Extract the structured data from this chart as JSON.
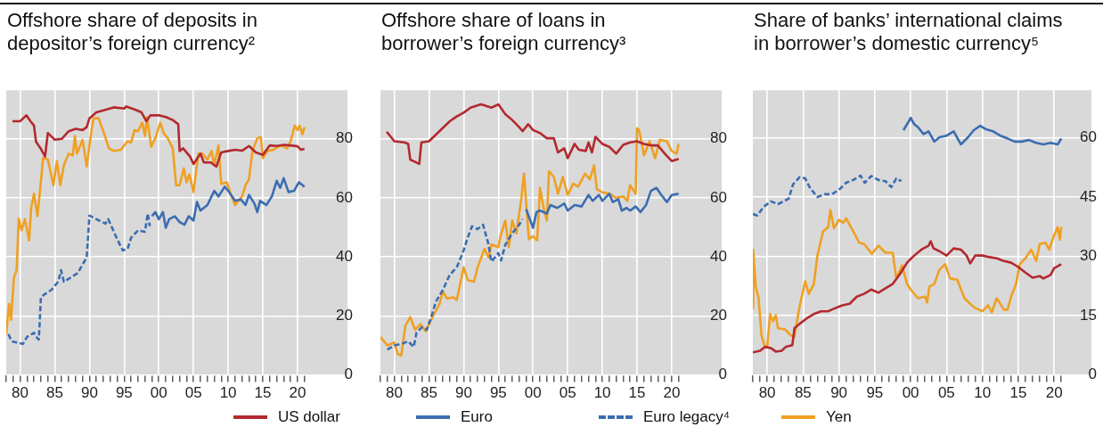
{
  "chart_data": [
    {
      "type": "line",
      "title": "Offshore share of deposits in depositor’s foreign currency²",
      "legend": "bottom",
      "grid": true,
      "xlim": [
        1978,
        2027.2
      ],
      "ylim": [
        0,
        96.5
      ],
      "yticks": [
        0,
        20,
        40,
        60,
        80
      ],
      "xticks": [
        {
          "value": 1978,
          "label": null
        },
        {
          "value": 1979,
          "label": null
        },
        {
          "value": 1980,
          "label": "80"
        },
        {
          "value": 1981,
          "label": null
        },
        {
          "value": 1982,
          "label": null
        },
        {
          "value": 1983,
          "label": null
        },
        {
          "value": 1984,
          "label": null
        },
        {
          "value": 1985,
          "label": "85"
        },
        {
          "value": 1986,
          "label": null
        },
        {
          "value": 1987,
          "label": null
        },
        {
          "value": 1988,
          "label": null
        },
        {
          "value": 1989,
          "label": null
        },
        {
          "value": 1990,
          "label": "90"
        },
        {
          "value": 1991,
          "label": null
        },
        {
          "value": 1992,
          "label": null
        },
        {
          "value": 1993,
          "label": null
        },
        {
          "value": 1994,
          "label": null
        },
        {
          "value": 1995,
          "label": "95"
        },
        {
          "value": 1996,
          "label": null
        },
        {
          "value": 1997,
          "label": null
        },
        {
          "value": 1998,
          "label": null
        },
        {
          "value": 1999,
          "label": null
        },
        {
          "value": 2000,
          "label": "00"
        },
        {
          "value": 2001,
          "label": null
        },
        {
          "value": 2002,
          "label": null
        },
        {
          "value": 2003,
          "label": null
        },
        {
          "value": 2004,
          "label": null
        },
        {
          "value": 2005,
          "label": "05"
        },
        {
          "value": 2006,
          "label": null
        },
        {
          "value": 2007,
          "label": null
        },
        {
          "value": 2008,
          "label": null
        },
        {
          "value": 2009,
          "label": null
        },
        {
          "value": 2010,
          "label": "10"
        },
        {
          "value": 2011,
          "label": null
        },
        {
          "value": 2012,
          "label": null
        },
        {
          "value": 2013,
          "label": null
        },
        {
          "value": 2014,
          "label": null
        },
        {
          "value": 2015,
          "label": "15"
        },
        {
          "value": 2016,
          "label": null
        },
        {
          "value": 2017,
          "label": null
        },
        {
          "value": 2018,
          "label": null
        },
        {
          "value": 2019,
          "label": null
        },
        {
          "value": 2020,
          "label": "20"
        },
        {
          "value": 2021,
          "label": null
        }
      ],
      "series": [
        {
          "name": "US dollar",
          "color": "#b3292e",
          "line_style": "solid",
          "x": [
            1978.9,
            1980,
            1980.9,
            1981.5,
            1982,
            1982.3,
            1983,
            1983.6,
            1984,
            1985,
            1986,
            1987,
            1988,
            1989,
            1989.6,
            1990,
            1991,
            1992.5,
            1993.5,
            1995,
            1995.3,
            1996.5,
            1997.5,
            1998.2,
            1998.8,
            2000,
            2001,
            2002,
            2002.8,
            2003,
            2003.5,
            2004.5,
            2005,
            2006,
            2006.5,
            2007.5,
            2008.3,
            2009,
            2010,
            2011,
            2012,
            2013,
            2014,
            2015,
            2016,
            2017,
            2018,
            2019,
            2020,
            2020.5,
            2021
          ],
          "values": [
            86,
            86,
            88,
            86,
            84.5,
            79,
            76.6,
            74,
            82,
            79.7,
            80,
            82.6,
            83.4,
            83,
            84,
            87,
            89,
            90,
            90.7,
            90.3,
            91,
            90,
            89,
            86,
            88,
            88,
            87.4,
            86.4,
            85,
            75.9,
            76.8,
            74,
            71.5,
            75,
            72,
            72,
            70.6,
            75.4,
            75.9,
            76.3,
            76,
            77.6,
            75.4,
            74.6,
            77.8,
            77.6,
            78,
            77.8,
            77.5,
            76.3,
            76.6
          ]
        },
        {
          "name": "Euro",
          "color": "#3b6db0",
          "line_style": "solid",
          "x": [
            1999,
            1999.5,
            2000,
            2000.6,
            2001,
            2001.5,
            2002.3,
            2003,
            2003.7,
            2004.3,
            2005,
            2005.5,
            2006,
            2007,
            2008,
            2008.6,
            2009.5,
            2010,
            2011,
            2011.8,
            2012.5,
            2013,
            2013.8,
            2014.2,
            2014.6,
            2015.5,
            2016.3,
            2017,
            2017.5,
            2018,
            2018.7,
            2019.5,
            2020.2,
            2021
          ],
          "values": [
            53.8,
            55.2,
            52.8,
            55.2,
            49.9,
            52.8,
            53.8,
            51.8,
            50.9,
            53.8,
            52.3,
            58.6,
            55.7,
            57.6,
            62.4,
            60.5,
            63.8,
            62.4,
            59,
            59.5,
            57.6,
            61,
            58,
            55.2,
            59,
            57.6,
            60.5,
            65.8,
            63.4,
            66.7,
            62,
            62.4,
            65.3,
            63.8
          ]
        },
        {
          "name": "Euro legacy⁴",
          "color": "#3b6db0",
          "line_style": "dashed",
          "x": [
            1978.3,
            1978.8,
            1980.4,
            1981,
            1982,
            1982.5,
            1982.7,
            1983,
            1983.5,
            1984.5,
            1985,
            1985.5,
            1985.9,
            1986.3,
            1987.3,
            1988.3,
            1989,
            1989.6,
            1990,
            1991,
            1992.3,
            1992.7,
            1994,
            1994.8,
            1995.5,
            1996,
            1997,
            1998,
            1998.4,
            1998.7
          ],
          "values": [
            13.8,
            11.4,
            10.5,
            12.9,
            14.3,
            12.4,
            12,
            26.3,
            27.3,
            28.8,
            30.2,
            31.6,
            35.5,
            31.6,
            33,
            34.5,
            37.4,
            39.8,
            54,
            52.8,
            51.3,
            52.8,
            46,
            42.2,
            42.7,
            46.5,
            49,
            48.5,
            54.7,
            50.4
          ]
        },
        {
          "name": "Yen",
          "color": "#efa022",
          "line_style": "solid",
          "x": [
            1978,
            1978.4,
            1978.7,
            1979.1,
            1979.5,
            1979.8,
            1980.2,
            1980.7,
            1981.3,
            1981.6,
            1982,
            1982.5,
            1983.1,
            1983.3,
            1984,
            1984.8,
            1985.3,
            1985.8,
            1986.3,
            1987,
            1987.6,
            1987.9,
            1988.2,
            1989,
            1989.6,
            1990.3,
            1990.6,
            1991.3,
            1992,
            1992.8,
            1993.5,
            1994.5,
            1995.5,
            1996,
            1996.5,
            1997,
            1997.6,
            1998,
            1998.3,
            1998.9,
            1999.5,
            2000.2,
            2000.7,
            2001.3,
            2002,
            2002.5,
            2003,
            2003.6,
            2004,
            2004.4,
            2005,
            2005.7,
            2006.3,
            2007,
            2007.6,
            2008,
            2008.6,
            2009,
            2009.8,
            2010.5,
            2011,
            2012,
            2012.5,
            2013,
            2013.5,
            2014.2,
            2014.7,
            2015,
            2015.7,
            2016.5,
            2017.5,
            2018.5,
            2019,
            2019.6,
            2020,
            2020.3,
            2020.7,
            2021
          ],
          "values": [
            13.8,
            24,
            18.7,
            33,
            35.5,
            53,
            49,
            52.8,
            45.6,
            56.6,
            61.4,
            53.8,
            68,
            73.5,
            73,
            64.3,
            72.5,
            64.3,
            71,
            75,
            74.4,
            81,
            75,
            79.7,
            70.6,
            83,
            87,
            87,
            82.6,
            76.8,
            75.9,
            76.3,
            79.2,
            78.8,
            83,
            82.6,
            85.5,
            81,
            87.4,
            77.3,
            80.2,
            85.5,
            82,
            80.2,
            76.8,
            64.3,
            64.3,
            70,
            65.3,
            68,
            62,
            75,
            75,
            73,
            75.9,
            71,
            77.8,
            64.8,
            65.3,
            60.5,
            57.6,
            60.5,
            64.3,
            66.3,
            75.9,
            80.2,
            80.7,
            73.5,
            75.9,
            76.3,
            77.8,
            76.8,
            79.2,
            84.5,
            83,
            84.5,
            81.6,
            84
          ]
        }
      ]
    },
    {
      "type": "line",
      "title": "Offshore share of loans in borrower’s foreign currency³",
      "grid": true,
      "xlim": [
        1978,
        2027.2
      ],
      "ylim": [
        0,
        96.5
      ],
      "yticks": [
        0,
        20,
        40,
        60,
        80
      ],
      "xticks": [
        {
          "value": 1978,
          "label": null
        },
        {
          "value": 1979,
          "label": null
        },
        {
          "value": 1980,
          "label": "80"
        },
        {
          "value": 1981,
          "label": null
        },
        {
          "value": 1982,
          "label": null
        },
        {
          "value": 1983,
          "label": null
        },
        {
          "value": 1984,
          "label": null
        },
        {
          "value": 1985,
          "label": "85"
        },
        {
          "value": 1986,
          "label": null
        },
        {
          "value": 1987,
          "label": null
        },
        {
          "value": 1988,
          "label": null
        },
        {
          "value": 1989,
          "label": null
        },
        {
          "value": 1990,
          "label": "90"
        },
        {
          "value": 1991,
          "label": null
        },
        {
          "value": 1992,
          "label": null
        },
        {
          "value": 1993,
          "label": null
        },
        {
          "value": 1994,
          "label": null
        },
        {
          "value": 1995,
          "label": "95"
        },
        {
          "value": 1996,
          "label": null
        },
        {
          "value": 1997,
          "label": null
        },
        {
          "value": 1998,
          "label": null
        },
        {
          "value": 1999,
          "label": null
        },
        {
          "value": 2000,
          "label": "00"
        },
        {
          "value": 2001,
          "label": null
        },
        {
          "value": 2002,
          "label": null
        },
        {
          "value": 2003,
          "label": null
        },
        {
          "value": 2004,
          "label": null
        },
        {
          "value": 2005,
          "label": "05"
        },
        {
          "value": 2006,
          "label": null
        },
        {
          "value": 2007,
          "label": null
        },
        {
          "value": 2008,
          "label": null
        },
        {
          "value": 2009,
          "label": null
        },
        {
          "value": 2010,
          "label": "10"
        },
        {
          "value": 2011,
          "label": null
        },
        {
          "value": 2012,
          "label": null
        },
        {
          "value": 2013,
          "label": null
        },
        {
          "value": 2014,
          "label": null
        },
        {
          "value": 2015,
          "label": "15"
        },
        {
          "value": 2016,
          "label": null
        },
        {
          "value": 2017,
          "label": null
        },
        {
          "value": 2018,
          "label": null
        },
        {
          "value": 2019,
          "label": null
        },
        {
          "value": 2020,
          "label": "20"
        },
        {
          "value": 2021,
          "label": null
        }
      ],
      "series": [
        {
          "color": "#b3292e",
          "line_style": "solid",
          "x": [
            1978.9,
            1979.5,
            1980,
            1981.5,
            1982,
            1982.3,
            1983,
            1983.6,
            1983.9,
            1985,
            1986.5,
            1988,
            1989,
            1990,
            1991,
            1992.5,
            1994,
            1995,
            1996,
            1997,
            1998,
            1998.5,
            1999.3,
            2000,
            2001,
            2002,
            2003,
            2003.6,
            2004.5,
            2005,
            2006,
            2006.6,
            2007.6,
            2008,
            2008.5,
            2009,
            2010,
            2011,
            2012,
            2013,
            2014,
            2015,
            2016,
            2017,
            2018,
            2019,
            2020,
            2021
          ],
          "values": [
            82.4,
            80.7,
            79.2,
            78.8,
            78.3,
            73,
            72.2,
            71.5,
            78.8,
            79.2,
            82.6,
            86,
            87.6,
            88.9,
            90.6,
            91.7,
            90.6,
            91.7,
            88.4,
            86.4,
            84,
            82.6,
            85,
            83,
            82,
            80.2,
            80.2,
            75.4,
            76.8,
            73.5,
            78.3,
            76.3,
            75.9,
            78.8,
            75.4,
            80.7,
            78.3,
            77.3,
            75,
            78,
            78.8,
            79.2,
            78.3,
            77.8,
            77.8,
            75,
            72.5,
            73.2
          ]
        },
        {
          "color": "#3b6db0",
          "line_style": "solid",
          "x": [
            1999,
            2000,
            2000.5,
            2001,
            2002,
            2002.5,
            2003.5,
            2004.5,
            2005,
            2006,
            2007,
            2008,
            2008.6,
            2009.5,
            2010,
            2011,
            2011.5,
            2012.3,
            2012.8,
            2013.5,
            2014,
            2014.8,
            2015.5,
            2016.3,
            2017,
            2017.8,
            2018.5,
            2019.3,
            2020,
            2021
          ],
          "values": [
            56.2,
            49.9,
            55.2,
            55.7,
            54.7,
            57.6,
            56.6,
            58.1,
            55.7,
            57.6,
            57.1,
            61,
            59,
            61,
            59,
            61.4,
            58.6,
            59.5,
            55.7,
            56.6,
            55.7,
            57.1,
            55.2,
            57.6,
            62.4,
            63.4,
            61,
            58.6,
            61,
            61.4
          ]
        },
        {
          "color": "#3b6db0",
          "line_style": "dashed",
          "x": [
            1979,
            1980,
            1981,
            1982,
            1982.8,
            1983.2,
            1984,
            1984.7,
            1985.5,
            1986,
            1987,
            1988,
            1989,
            1990,
            1990.5,
            1991.2,
            1992,
            1992.8,
            1993.5,
            1994,
            1995,
            1995.4,
            1996,
            1997,
            1998,
            1998.5
          ],
          "values": [
            8.6,
            10,
            10.5,
            11.4,
            9.5,
            14.3,
            16.2,
            15.3,
            21,
            24.9,
            28.8,
            34,
            36.4,
            42.2,
            46,
            50.4,
            49.4,
            50.9,
            45,
            38.4,
            41.3,
            38.8,
            44.1,
            48,
            50.9,
            52.8
          ]
        },
        {
          "color": "#efa022",
          "line_style": "solid",
          "x": [
            1978,
            1979,
            1980,
            1980.5,
            1981,
            1981.6,
            1982.3,
            1983,
            1983.8,
            1984.5,
            1985.6,
            1986.5,
            1987,
            1987.6,
            1988.5,
            1989,
            1990,
            1990.6,
            1991.5,
            1992,
            1993,
            1993.6,
            1994,
            1995,
            1995.3,
            1996,
            1996.5,
            1997,
            1997.6,
            1998.3,
            1998.7,
            1999.4,
            2000,
            2000.6,
            2001,
            2001.6,
            2002,
            2002.3,
            2003,
            2003.6,
            2004.3,
            2005,
            2005.8,
            2006.5,
            2007.5,
            2008.2,
            2008.8,
            2009.2,
            2010,
            2011,
            2012,
            2013,
            2013.6,
            2014,
            2014.8,
            2015,
            2015.3,
            2016,
            2016.8,
            2017.6,
            2018.3,
            2019.3,
            2020,
            2020.7,
            2021
          ],
          "values": [
            12.9,
            10,
            11,
            7.1,
            6.6,
            16.7,
            19.6,
            15.3,
            17.2,
            14.8,
            20,
            23.9,
            28.3,
            25.9,
            26.3,
            25.4,
            36.4,
            32.1,
            31.6,
            36.4,
            42.7,
            39.8,
            44.2,
            43.3,
            47,
            52.3,
            43.3,
            52.3,
            48,
            59.5,
            68.2,
            46,
            47,
            45.6,
            63.4,
            55.7,
            52.3,
            69,
            67.1,
            61.4,
            67.1,
            61,
            64.8,
            63.8,
            68.2,
            66.3,
            71,
            62.9,
            61.9,
            61.4,
            60,
            60.5,
            59,
            64.3,
            61.4,
            83.6,
            83,
            74.4,
            79.2,
            73.5,
            79.7,
            79.2,
            75.9,
            75,
            78.3
          ]
        }
      ]
    },
    {
      "type": "line",
      "title": "Share of banks’ international claims in borrower’s domestic currency⁵",
      "grid": true,
      "xlim": [
        1978,
        2025.2
      ],
      "ylim": [
        0,
        72
      ],
      "yticks": [
        0,
        15,
        30,
        45,
        60
      ],
      "xticks": [
        {
          "value": 1978,
          "label": null
        },
        {
          "value": 1979,
          "label": null
        },
        {
          "value": 1980,
          "label": "80"
        },
        {
          "value": 1981,
          "label": null
        },
        {
          "value": 1982,
          "label": null
        },
        {
          "value": 1983,
          "label": null
        },
        {
          "value": 1984,
          "label": null
        },
        {
          "value": 1985,
          "label": "85"
        },
        {
          "value": 1986,
          "label": null
        },
        {
          "value": 1987,
          "label": null
        },
        {
          "value": 1988,
          "label": null
        },
        {
          "value": 1989,
          "label": null
        },
        {
          "value": 1990,
          "label": "90"
        },
        {
          "value": 1991,
          "label": null
        },
        {
          "value": 1992,
          "label": null
        },
        {
          "value": 1993,
          "label": null
        },
        {
          "value": 1994,
          "label": null
        },
        {
          "value": 1995,
          "label": "95"
        },
        {
          "value": 1996,
          "label": null
        },
        {
          "value": 1997,
          "label": null
        },
        {
          "value": 1998,
          "label": null
        },
        {
          "value": 1999,
          "label": null
        },
        {
          "value": 2000,
          "label": "00"
        },
        {
          "value": 2001,
          "label": null
        },
        {
          "value": 2002,
          "label": null
        },
        {
          "value": 2003,
          "label": null
        },
        {
          "value": 2004,
          "label": null
        },
        {
          "value": 2005,
          "label": "05"
        },
        {
          "value": 2006,
          "label": null
        },
        {
          "value": 2007,
          "label": null
        },
        {
          "value": 2008,
          "label": null
        },
        {
          "value": 2009,
          "label": null
        },
        {
          "value": 2010,
          "label": "10"
        },
        {
          "value": 2011,
          "label": null
        },
        {
          "value": 2012,
          "label": null
        },
        {
          "value": 2013,
          "label": null
        },
        {
          "value": 2014,
          "label": null
        },
        {
          "value": 2015,
          "label": "15"
        },
        {
          "value": 2016,
          "label": null
        },
        {
          "value": 2017,
          "label": null
        },
        {
          "value": 2018,
          "label": null
        },
        {
          "value": 2019,
          "label": null
        },
        {
          "value": 2020,
          "label": "20"
        },
        {
          "value": 2021,
          "label": null
        }
      ],
      "series": [
        {
          "color": "#b3292e",
          "line_style": "solid",
          "x": [
            1978,
            1979,
            1979.7,
            1980.5,
            1981.2,
            1982,
            1982.6,
            1983.5,
            1983.8,
            1984.5,
            1985.5,
            1986.5,
            1987.5,
            1988.5,
            1989.5,
            1990.5,
            1991.5,
            1992.5,
            1993.5,
            1994.5,
            1995.5,
            1996.5,
            1997.5,
            1998.5,
            1999.5,
            2000.5,
            2001.5,
            2002.5,
            2002.8,
            2003.2,
            2004,
            2005,
            2006,
            2007,
            2007.8,
            2008.3,
            2009,
            2010,
            2011,
            2012,
            2013,
            2014,
            2015,
            2016,
            2017,
            2018,
            2018.5,
            2019.5,
            2020,
            2021
          ],
          "values": [
            5.7,
            6.1,
            7.1,
            6.8,
            5.9,
            6.1,
            7.1,
            7.5,
            11.8,
            12.9,
            14.3,
            15.4,
            16.1,
            16.1,
            16.9,
            17.6,
            18,
            19.8,
            20.5,
            21.6,
            20.8,
            21.9,
            23,
            25.5,
            28.4,
            30.2,
            31.7,
            32.7,
            33.8,
            32,
            31.3,
            30.2,
            32,
            31.7,
            30.2,
            28.2,
            30.2,
            30.2,
            29.8,
            29.5,
            28.8,
            28.4,
            27.3,
            25.9,
            24.6,
            25,
            24.4,
            25.3,
            27,
            28
          ]
        },
        {
          "color": "#3b6db0",
          "line_style": "solid",
          "x": [
            1999,
            1999.6,
            2000,
            2000.5,
            2001,
            2001.8,
            2002.5,
            2003.3,
            2004,
            2005,
            2006,
            2007,
            2008,
            2008.8,
            2009.7,
            2010.5,
            2011.5,
            2012.5,
            2013.5,
            2014.5,
            2015.5,
            2016.5,
            2017.5,
            2018.5,
            2019.5,
            2020.5,
            2021
          ],
          "values": [
            61.9,
            63.7,
            65,
            63.4,
            62.7,
            60.9,
            61.6,
            59,
            60.1,
            60.5,
            61.6,
            58.3,
            60.1,
            61.9,
            63,
            62.1,
            61.6,
            60.5,
            59.8,
            59,
            59,
            59.4,
            58.7,
            58.3,
            58.7,
            58.3,
            59.8
          ]
        },
        {
          "color": "#3b6db0",
          "line_style": "dashed",
          "x": [
            1978,
            1978.6,
            1979.5,
            1980.5,
            1981.5,
            1982.3,
            1983,
            1983.6,
            1984.5,
            1985.3,
            1986,
            1987,
            1988,
            1989,
            1990,
            1991,
            1992,
            1993,
            1993.6,
            1994.5,
            1995.5,
            1996.5,
            1997.3,
            1998,
            1998.7
          ],
          "values": [
            40.7,
            40.3,
            42.5,
            43.9,
            43.2,
            43.9,
            44.6,
            48.2,
            50,
            49.7,
            47.2,
            45,
            45.7,
            45.7,
            46.8,
            48.6,
            49.3,
            50.4,
            48.6,
            50.3,
            49.3,
            49,
            47.5,
            49.7,
            49
          ]
        },
        {
          "color": "#efa022",
          "line_style": "solid",
          "x": [
            1978,
            1978.05,
            1978.4,
            1978.8,
            1979.2,
            1979.6,
            1980,
            1980.4,
            1980.8,
            1981.2,
            1981.5,
            1982.5,
            1983.3,
            1983.8,
            1984.5,
            1985.3,
            1985.8,
            1986.5,
            1987,
            1987.8,
            1988.5,
            1988.8,
            1989.3,
            1990,
            1990.6,
            1991,
            1992,
            1992.8,
            1993.5,
            1994,
            1994.6,
            1995.5,
            1996.5,
            1997.5,
            1998,
            1998.8,
            1999.5,
            2000,
            2001,
            2002,
            2002.3,
            2002.6,
            2003.3,
            2004,
            2004.8,
            2005.5,
            2006.5,
            2007.5,
            2008.3,
            2009,
            2010,
            2010.8,
            2011.3,
            2012,
            2013,
            2013.5,
            2014,
            2014.7,
            2015.2,
            2016,
            2016.8,
            2017.5,
            2018,
            2018.8,
            2019.3,
            2020,
            2020.5,
            2020.8,
            2021
          ],
          "values": [
            16.9,
            31.7,
            22.3,
            19.4,
            10,
            7.5,
            7.1,
            15.4,
            13.6,
            15.1,
            11.8,
            11.5,
            10,
            9.7,
            17.2,
            23.7,
            20.5,
            23,
            30.2,
            36.3,
            37.4,
            41.7,
            37.1,
            39.2,
            38.5,
            39.6,
            36.3,
            33.5,
            33.1,
            32,
            30.6,
            32.7,
            30.9,
            30.9,
            24.4,
            27.7,
            23,
            21.6,
            19.4,
            19.8,
            18.3,
            22.3,
            23,
            26.6,
            28,
            24.4,
            24.1,
            19.4,
            18,
            16.9,
            16.1,
            17.6,
            15.8,
            19.4,
            16.5,
            16.5,
            19.8,
            23,
            28,
            29.5,
            31.7,
            28.8,
            33.1,
            33.5,
            31.7,
            35.3,
            37.4,
            34.2,
            37.4
          ]
        }
      ]
    }
  ]
}
